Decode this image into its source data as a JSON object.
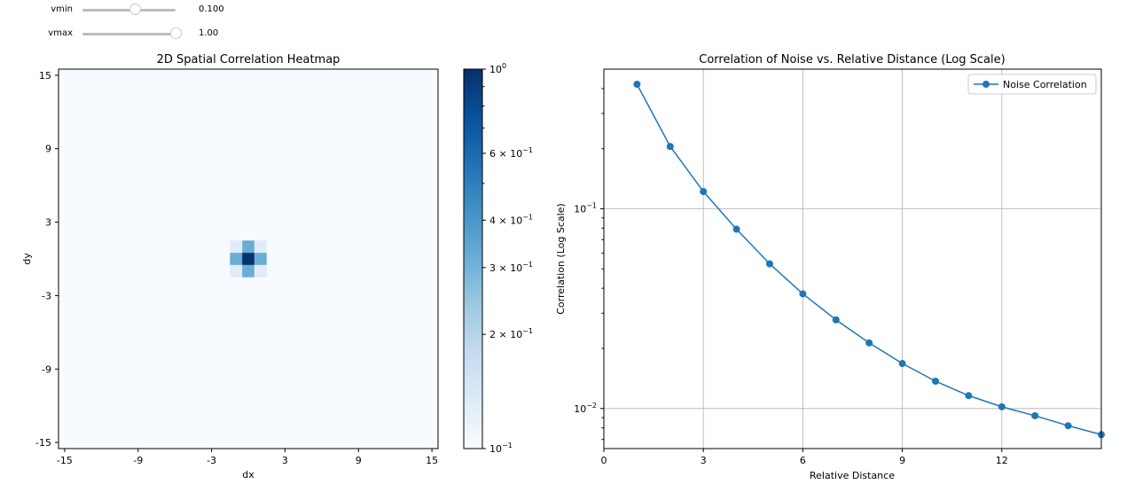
{
  "controls": {
    "vmin": {
      "label": "vmin",
      "value": 0.1,
      "min": 0.0,
      "max": 1.0,
      "display": "0.100"
    },
    "vmax": {
      "label": "vmax",
      "value": 1.0,
      "min": 0.0,
      "max": 1.0,
      "display": "1.00"
    }
  },
  "chart_data": [
    {
      "type": "heatmap",
      "title": "2D Spatial Correlation Heatmap",
      "xlabel": "dx",
      "ylabel": "dy",
      "xlim": [
        -15,
        15
      ],
      "ylim": [
        -15,
        15
      ],
      "xticks": [
        "-15",
        "-9",
        "-3",
        "3",
        "9",
        "15"
      ],
      "yticks": [
        "15",
        "9",
        "3",
        "-3",
        "-9",
        "-15"
      ],
      "grid": false,
      "colormap": "Blues",
      "colorbar": {
        "scale": "log",
        "range": [
          0.1,
          1.0
        ],
        "ticks": [
          {
            "value": 1.0,
            "mant": "",
            "exp": "0",
            "base": "10"
          },
          {
            "value": 0.6,
            "mant": "6 × ",
            "exp": "−1",
            "base": "10"
          },
          {
            "value": 0.4,
            "mant": "4 × ",
            "exp": "−1",
            "base": "10"
          },
          {
            "value": 0.3,
            "mant": "3 × ",
            "exp": "−1",
            "base": "10"
          },
          {
            "value": 0.2,
            "mant": "2 × ",
            "exp": "−1",
            "base": "10"
          },
          {
            "value": 0.1,
            "mant": "",
            "exp": "−1",
            "base": "10"
          }
        ]
      },
      "background_value": 0.1,
      "cells": [
        {
          "dx": 0,
          "dy": 0,
          "value": 1.0
        },
        {
          "dx": 1,
          "dy": 0,
          "value": 0.32
        },
        {
          "dx": -1,
          "dy": 0,
          "value": 0.32
        },
        {
          "dx": 0,
          "dy": 1,
          "value": 0.32
        },
        {
          "dx": 0,
          "dy": -1,
          "value": 0.32
        },
        {
          "dx": 1,
          "dy": 1,
          "value": 0.13
        },
        {
          "dx": -1,
          "dy": 1,
          "value": 0.13
        },
        {
          "dx": 1,
          "dy": -1,
          "value": 0.13
        },
        {
          "dx": -1,
          "dy": -1,
          "value": 0.13
        }
      ]
    },
    {
      "type": "line",
      "title": "Correlation of Noise vs. Relative Distance (Log Scale)",
      "xlabel": "Relative Distance",
      "ylabel": "Correlation (Log Scale)",
      "yscale": "log",
      "xlim": [
        0,
        15
      ],
      "ylim": [
        0.0063,
        0.5
      ],
      "xticks": [
        "0",
        "3",
        "6",
        "9",
        "12"
      ],
      "yticks": [
        {
          "value": 0.1,
          "exp": "−1",
          "base": "10"
        },
        {
          "value": 0.01,
          "exp": "−2",
          "base": "10"
        }
      ],
      "grid": true,
      "legend": "top-right",
      "series": [
        {
          "name": "Noise Correlation",
          "color": "#1f77b4",
          "x": [
            1,
            2,
            3,
            4,
            5,
            6,
            7,
            8,
            9,
            10,
            11,
            12,
            13,
            14,
            15
          ],
          "y": [
            0.42,
            0.205,
            0.122,
            0.079,
            0.053,
            0.0375,
            0.0278,
            0.0213,
            0.0168,
            0.0137,
            0.0116,
            0.0102,
            0.0092,
            0.0082,
            0.0074
          ]
        }
      ]
    }
  ]
}
